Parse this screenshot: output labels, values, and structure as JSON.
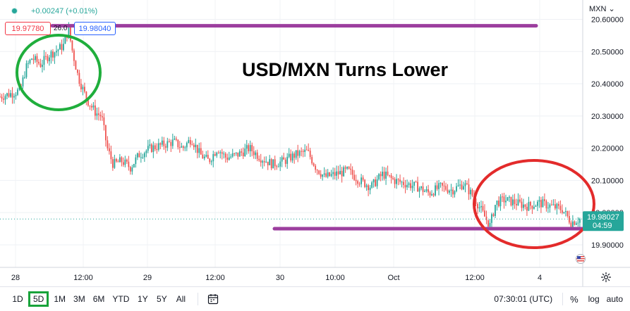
{
  "header": {
    "change": "+0.00247 (+0.01%)",
    "bid": "19.97780",
    "spread": "26.0",
    "ask": "19.98040"
  },
  "axis": {
    "currency": "MXN"
  },
  "toolbar": {
    "ranges": [
      "1D",
      "5D",
      "1M",
      "3M",
      "6M",
      "YTD",
      "1Y",
      "5Y",
      "All"
    ],
    "active_range": "5D",
    "clock": "07:30:01 (UTC)",
    "percent": "%",
    "log": "log",
    "auto": "auto"
  },
  "colors": {
    "up": "#26a69a",
    "down": "#ef5350",
    "resistance_line": "#9c3e9e",
    "green_circle": "#1fae3c",
    "red_circle": "#e32b2b",
    "price_label": "#26a69a"
  },
  "chart_data": {
    "type": "candlestick",
    "title": "USD/MXN Turns Lower",
    "ylim": [
      19.83,
      20.66
    ],
    "y_ticks": [
      19.9,
      20.0,
      20.1,
      20.2,
      20.3,
      20.4,
      20.5,
      20.6
    ],
    "y_tick_labels": [
      "19.90000",
      "20.00000",
      "20.10000",
      "20.20000",
      "20.30000",
      "20.40000",
      "20.50000",
      "20.60000"
    ],
    "x_tick_labels": [
      "28",
      "12:00",
      "29",
      "12:00",
      "30",
      "10:00",
      "Oct",
      "12:00",
      "4"
    ],
    "current_price": "19.98027",
    "countdown": "04:59",
    "close_path": [
      [
        0,
        20.36
      ],
      [
        0.02,
        20.37
      ],
      [
        0.035,
        20.38
      ],
      [
        0.045,
        20.45
      ],
      [
        0.055,
        20.48
      ],
      [
        0.07,
        20.46
      ],
      [
        0.085,
        20.49
      ],
      [
        0.095,
        20.5
      ],
      [
        0.11,
        20.52
      ],
      [
        0.118,
        20.57
      ],
      [
        0.125,
        20.5
      ],
      [
        0.135,
        20.42
      ],
      [
        0.15,
        20.35
      ],
      [
        0.165,
        20.31
      ],
      [
        0.175,
        20.3
      ],
      [
        0.185,
        20.2
      ],
      [
        0.195,
        20.15
      ],
      [
        0.21,
        20.16
      ],
      [
        0.225,
        20.14
      ],
      [
        0.24,
        20.18
      ],
      [
        0.26,
        20.2
      ],
      [
        0.28,
        20.21
      ],
      [
        0.3,
        20.22
      ],
      [
        0.315,
        20.2
      ],
      [
        0.33,
        20.23
      ],
      [
        0.345,
        20.18
      ],
      [
        0.36,
        20.16
      ],
      [
        0.375,
        20.2
      ],
      [
        0.39,
        20.17
      ],
      [
        0.41,
        20.18
      ],
      [
        0.43,
        20.2
      ],
      [
        0.45,
        20.17
      ],
      [
        0.47,
        20.15
      ],
      [
        0.49,
        20.16
      ],
      [
        0.51,
        20.18
      ],
      [
        0.53,
        20.19
      ],
      [
        0.545,
        20.14
      ],
      [
        0.56,
        20.11
      ],
      [
        0.58,
        20.12
      ],
      [
        0.6,
        20.13
      ],
      [
        0.62,
        20.1
      ],
      [
        0.64,
        20.08
      ],
      [
        0.66,
        20.12
      ],
      [
        0.68,
        20.1
      ],
      [
        0.7,
        20.09
      ],
      [
        0.72,
        20.08
      ],
      [
        0.74,
        20.06
      ],
      [
        0.76,
        20.08
      ],
      [
        0.78,
        20.07
      ],
      [
        0.8,
        20.09
      ],
      [
        0.82,
        20.04
      ],
      [
        0.835,
        19.99
      ],
      [
        0.845,
        19.96
      ],
      [
        0.855,
        20.03
      ],
      [
        0.87,
        20.04
      ],
      [
        0.89,
        20.03
      ],
      [
        0.91,
        20.02
      ],
      [
        0.93,
        20.03
      ],
      [
        0.95,
        20.02
      ],
      [
        0.97,
        20.01
      ],
      [
        0.985,
        19.97
      ],
      [
        1.0,
        19.98
      ]
    ]
  },
  "annotations": {
    "resistance_level": 20.58,
    "support_level": 19.95
  }
}
